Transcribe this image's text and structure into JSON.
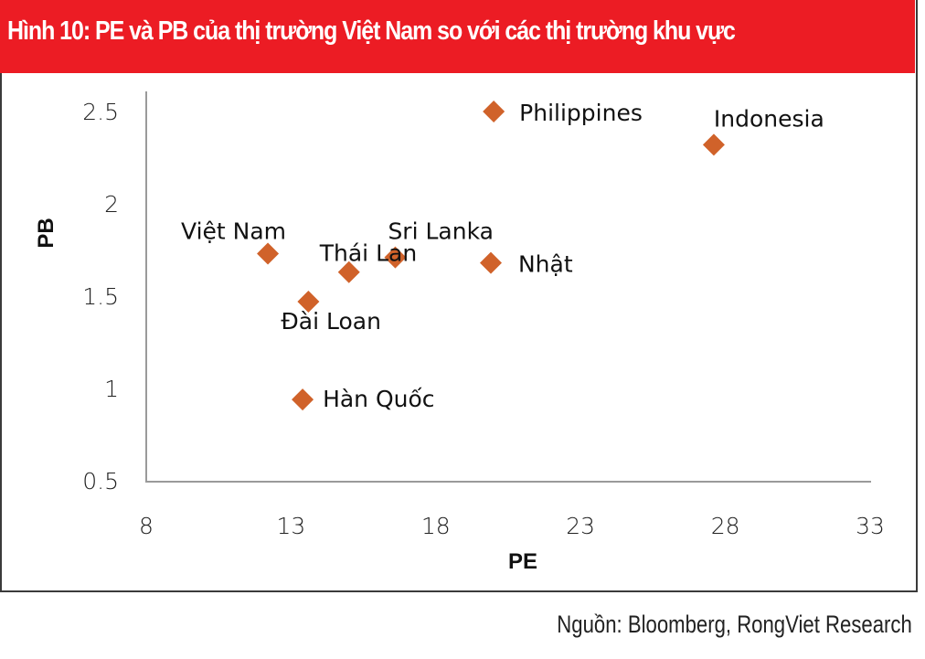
{
  "banner": {
    "title": "Hình 10: PE và PB của thị trường Việt Nam so với các thị trường khu vực",
    "color": "#ec1c24"
  },
  "source": "Nguồn: Bloomberg, RongViet Research",
  "chart_data": {
    "type": "scatter",
    "title": "Hình 10: PE và PB của thị trường Việt Nam so với các thị trường khu vực",
    "xlabel": "PE",
    "ylabel": "PB",
    "xlim": [
      8,
      33
    ],
    "ylim": [
      0.5,
      2.6
    ],
    "x_ticks": [
      "8",
      "13",
      "18",
      "23",
      "28",
      "33"
    ],
    "y_ticks": [
      "0.5",
      "1",
      "1.5",
      "2",
      "2.5"
    ],
    "grid": false,
    "legend": "none",
    "marker": "diamond",
    "marker_color": "#d0622a",
    "points": [
      {
        "label": "Philippines",
        "x": 20.0,
        "y": 2.5
      },
      {
        "label": "Indonesia",
        "x": 27.6,
        "y": 2.32
      },
      {
        "label": "Việt Nam",
        "x": 12.2,
        "y": 1.73
      },
      {
        "label": "Sri Lanka",
        "x": 16.6,
        "y": 1.71
      },
      {
        "label": "Thái Lan",
        "x": 15.0,
        "y": 1.63
      },
      {
        "label": "Nhật",
        "x": 19.9,
        "y": 1.68
      },
      {
        "label": "Đài Loan",
        "x": 13.6,
        "y": 1.47
      },
      {
        "label": "Hàn Quốc",
        "x": 13.4,
        "y": 0.94
      }
    ]
  }
}
